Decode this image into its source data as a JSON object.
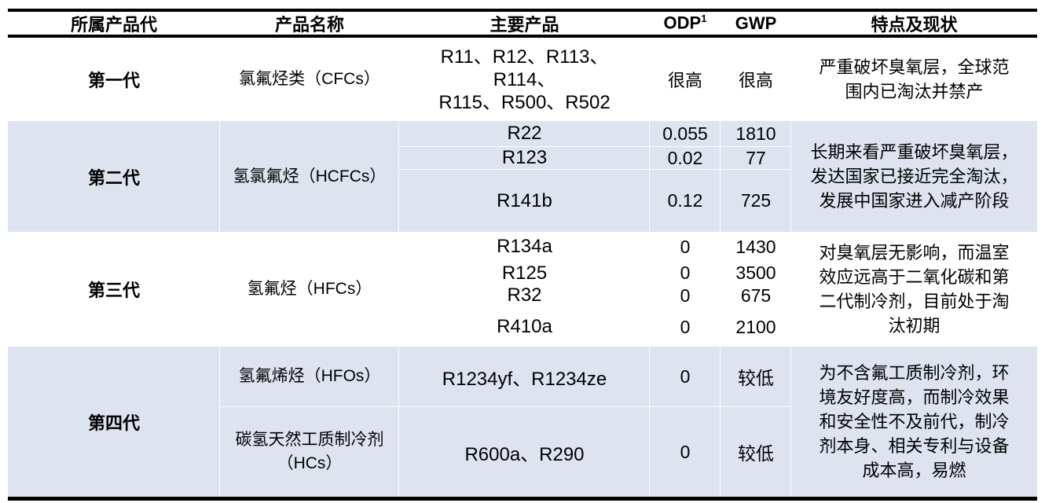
{
  "table": {
    "headers": [
      "所属产品代",
      "产品名称",
      "主要产品",
      "ODP",
      "GWP",
      "特点及现状"
    ],
    "odp_superscript": "1",
    "colors": {
      "row_highlight": "#dee3f0",
      "rule": "#000000",
      "text": "#000000"
    },
    "generations": [
      {
        "generation": "第一代",
        "name": "氯氟烃类（CFCs）",
        "products_lines": [
          "R11、R12、R113、",
          "R114、",
          "R115、R500、R502"
        ],
        "odp": "很高",
        "gwp": "很高",
        "notes_lines": [
          "严重破坏臭氧层，全球范",
          "围内已淘汰并禁产"
        ]
      },
      {
        "generation": "第二代",
        "name": "氢氯氟烃（HCFCs）",
        "sub_rows": [
          {
            "product": "R22",
            "odp": "0.055",
            "gwp": "1810"
          },
          {
            "product": "R123",
            "odp": "0.02",
            "gwp": "77"
          },
          {
            "product": "R141b",
            "odp": "0.12",
            "gwp": "725"
          }
        ],
        "notes_lines": [
          "长期来看严重破坏臭氧层，",
          "发达国家已接近完全淘汰，",
          "发展中国家进入减产阶段"
        ]
      },
      {
        "generation": "第三代",
        "name": "氢氟烃（HFCs）",
        "sub_rows": [
          {
            "product": "R134a",
            "odp": "0",
            "gwp": "1430"
          },
          {
            "product": "R125",
            "odp": "0",
            "gwp": "3500"
          },
          {
            "product": "R32",
            "odp": "0",
            "gwp": "675"
          },
          {
            "product": "R410a",
            "odp": "0",
            "gwp": "2100"
          }
        ],
        "notes_lines": [
          "对臭氧层无影响，而温室",
          "效应远高于二氧化碳和第",
          "二代制冷剂，目前处于淘",
          "汰初期"
        ]
      },
      {
        "generation": "第四代",
        "sub_rows": [
          {
            "name_lines": [
              "氢氟烯烃（HFOs）"
            ],
            "product": "R1234yf、R1234ze",
            "odp": "0",
            "gwp": "较低"
          },
          {
            "name_lines": [
              "碳氢天然工质制冷剂",
              "（HCs）"
            ],
            "product": "R600a、R290",
            "odp": "0",
            "gwp": "较低"
          }
        ],
        "notes_lines": [
          "为不含氟工质制冷剂，环",
          "境友好度高，而制冷效果",
          "和安全性不及前代，制冷",
          "剂本身、相关专利与设备",
          "成本高，易燃"
        ]
      }
    ]
  }
}
